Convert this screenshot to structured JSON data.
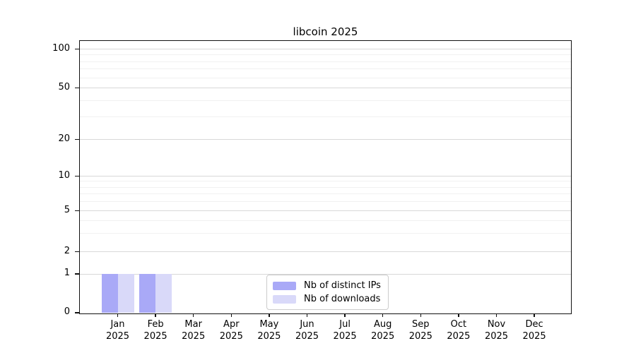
{
  "title": "libcoin 2025",
  "chart_data": {
    "type": "bar",
    "title": "libcoin 2025",
    "categories": [
      "Jan",
      "Feb",
      "Mar",
      "Apr",
      "May",
      "Jun",
      "Jul",
      "Aug",
      "Sep",
      "Oct",
      "Nov",
      "Dec"
    ],
    "category_year": "2025",
    "series": [
      {
        "name": "Nb of distinct IPs",
        "color": "#a9a9f7",
        "values": [
          1,
          1,
          0,
          0,
          0,
          0,
          0,
          0,
          0,
          0,
          0,
          0
        ]
      },
      {
        "name": "Nb of downloads",
        "color": "#d9d9f9",
        "values": [
          1,
          1,
          0,
          0,
          0,
          0,
          0,
          0,
          0,
          0,
          0,
          0
        ]
      }
    ],
    "xlabel": "",
    "ylabel": "",
    "y_axis": {
      "ticks": [
        0,
        1,
        2,
        5,
        10,
        20,
        50,
        100
      ],
      "minor_gridlines": [
        3,
        4,
        6,
        7,
        8,
        9,
        30,
        40,
        60,
        70,
        80,
        90
      ],
      "scale": "log-like (linear segment 0-1)",
      "range": [
        0,
        107
      ]
    },
    "grid": "horizontal major and minor",
    "legend_position": "lower center"
  },
  "colors": {
    "bar_distinct_ips": "#a9a9f7",
    "bar_downloads": "#d9d9f9",
    "grid_major": "#d8d8d8",
    "grid_minor": "#f1f1f1",
    "axis": "#111111",
    "legend_border": "#cccccc",
    "background": "#ffffff",
    "text": "#000000"
  }
}
